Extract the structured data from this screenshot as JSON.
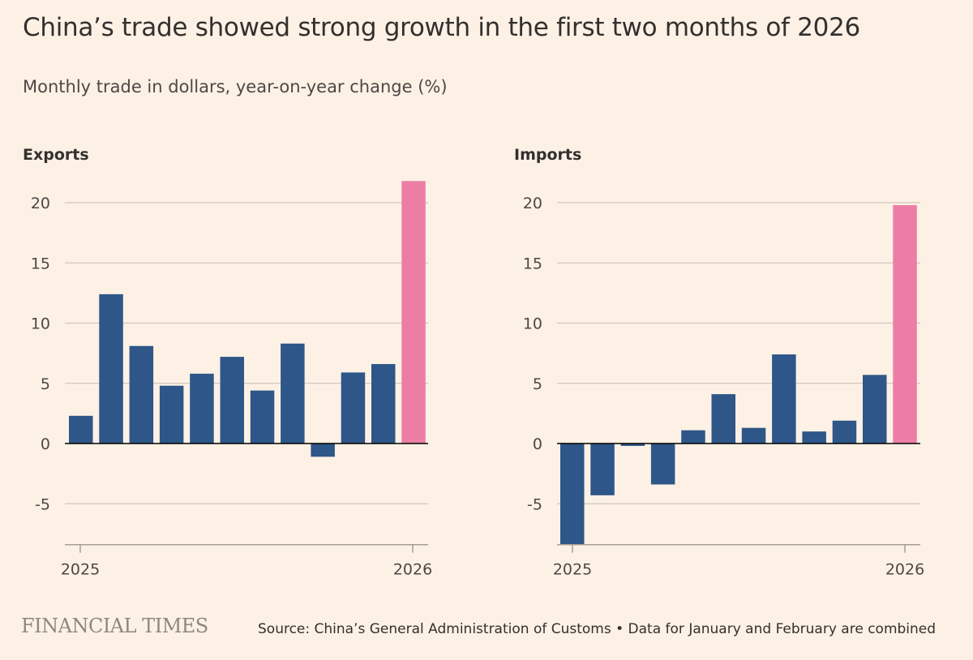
{
  "header": {
    "title": "China’s trade showed strong growth in the first two months of 2026",
    "subtitle": "Monthly trade in dollars, year-on-year change (%)"
  },
  "footer": {
    "logo": "FINANCIAL TIMES",
    "source": "Source: China’s General Administration of Customs • Data for January and February are combined"
  },
  "colors": {
    "background": "#fdf1e5",
    "bar": "#2e5688",
    "highlight": "#ec7ea6"
  },
  "chart_data": [
    {
      "type": "bar",
      "title": "Exports",
      "ylim": [
        -8.4,
        22
      ],
      "yticks": [
        -5,
        0,
        5,
        10,
        15,
        20
      ],
      "xtick_labels": [
        "2025",
        "2026"
      ],
      "grid": true,
      "values": [
        2.3,
        12.4,
        8.1,
        4.8,
        5.8,
        7.2,
        4.4,
        8.3,
        -1.1,
        5.9,
        6.6,
        21.8
      ],
      "highlight_index": 11
    },
    {
      "type": "bar",
      "title": "Imports",
      "ylim": [
        -8.4,
        22
      ],
      "yticks": [
        -5,
        0,
        5,
        10,
        15,
        20
      ],
      "xtick_labels": [
        "2025",
        "2026"
      ],
      "grid": true,
      "values": [
        -8.4,
        -4.3,
        -0.2,
        -3.4,
        1.1,
        4.1,
        1.3,
        7.4,
        1.0,
        1.9,
        5.7,
        19.8
      ],
      "highlight_index": 11
    }
  ]
}
